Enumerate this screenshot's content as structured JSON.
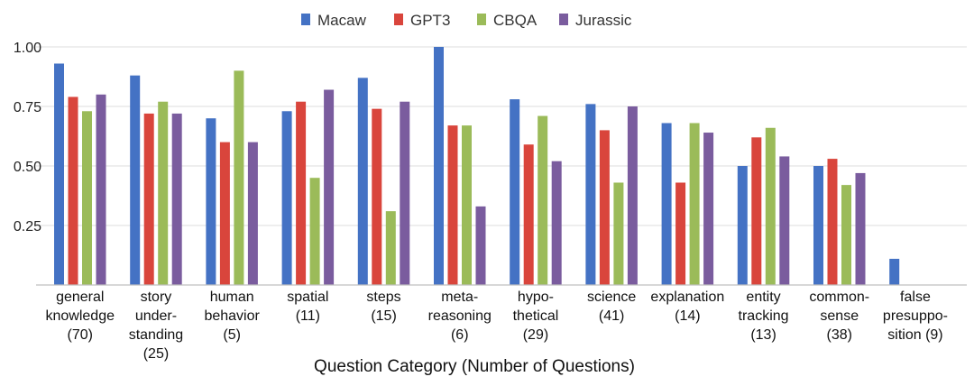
{
  "chart_data": {
    "type": "bar",
    "xlabel": "Question Category  (Number of Questions)",
    "ylabel": "",
    "ylim": [
      0,
      1.0
    ],
    "yticks": [
      "0.25",
      "0.50",
      "0.75",
      "1.00"
    ],
    "grid": true,
    "legend_position": "top",
    "categories": [
      [
        "general",
        "knowledge",
        "(70)"
      ],
      [
        "story",
        "under-",
        "standing",
        "(25)"
      ],
      [
        "human",
        "behavior",
        "(5)"
      ],
      [
        "spatial",
        "(11)"
      ],
      [
        "steps",
        "(15)"
      ],
      [
        "meta-",
        "reasoning",
        "(6)"
      ],
      [
        "hypo-",
        "thetical",
        "(29)"
      ],
      [
        "science",
        "(41)"
      ],
      [
        "explanation",
        "(14)"
      ],
      [
        "entity",
        "tracking",
        "(13)"
      ],
      [
        "common-",
        "sense",
        "(38)"
      ],
      [
        "false",
        "presuppo-",
        "sition (9)"
      ]
    ],
    "series": [
      {
        "name": "Macaw",
        "color": "#4472C4",
        "values": [
          0.93,
          0.88,
          0.7,
          0.73,
          0.87,
          1.0,
          0.78,
          0.76,
          0.68,
          0.5,
          0.5,
          0.11
        ]
      },
      {
        "name": "GPT3",
        "color": "#D9453C",
        "values": [
          0.79,
          0.72,
          0.6,
          0.77,
          0.74,
          0.67,
          0.59,
          0.65,
          0.43,
          0.62,
          0.53,
          0.0
        ]
      },
      {
        "name": "CBQA",
        "color": "#9BBB59",
        "values": [
          0.73,
          0.77,
          0.9,
          0.45,
          0.31,
          0.67,
          0.71,
          0.43,
          0.68,
          0.66,
          0.42,
          0.0
        ]
      },
      {
        "name": "Jurassic",
        "color": "#7A5C9E",
        "values": [
          0.8,
          0.72,
          0.6,
          0.82,
          0.77,
          0.33,
          0.52,
          0.75,
          0.64,
          0.54,
          0.47,
          0.0
        ]
      }
    ]
  }
}
